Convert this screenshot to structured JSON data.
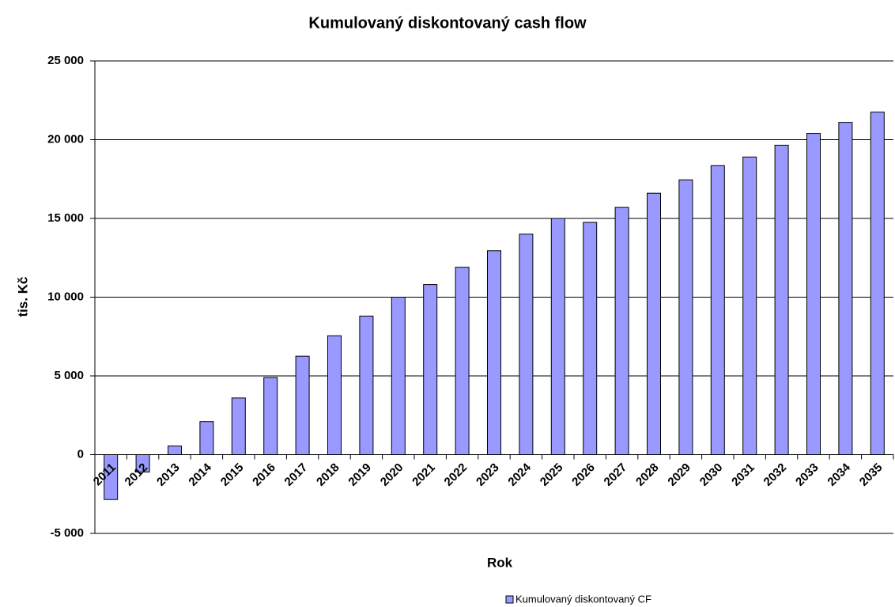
{
  "chart_data": {
    "type": "bar",
    "title": "Kumulovaný diskontovaný cash flow",
    "x_label": "Rok",
    "y_label": "tis. Kč",
    "categories": [
      "2011",
      "2012",
      "2013",
      "2014",
      "2015",
      "2016",
      "2017",
      "2018",
      "2019",
      "2020",
      "2021",
      "2022",
      "2023",
      "2024",
      "2025",
      "2026",
      "2027",
      "2028",
      "2029",
      "2030",
      "2031",
      "2032",
      "2033",
      "2034",
      "2035"
    ],
    "series": [
      {
        "name": "Kumulovaný diskontovaný CF",
        "color": "#9999ff",
        "values": [
          -2850,
          -1100,
          550,
          2100,
          3600,
          4900,
          6250,
          7550,
          8800,
          10000,
          10800,
          11900,
          12950,
          14000,
          15000,
          14750,
          15700,
          16600,
          17450,
          18350,
          18900,
          19650,
          20400,
          21100,
          21750
        ]
      }
    ],
    "ylim": [
      -5000,
      25000
    ],
    "yticks": [
      {
        "value": -5000,
        "label": "-5 000"
      },
      0,
      {
        "value": 5000,
        "label": "5 000"
      },
      {
        "value": 10000,
        "label": "10 000"
      },
      {
        "value": 15000,
        "label": "15 000"
      },
      {
        "value": 20000,
        "label": "20 000"
      },
      {
        "value": 25000,
        "label": "25 000"
      }
    ],
    "grid": true,
    "legend": "bottom"
  }
}
